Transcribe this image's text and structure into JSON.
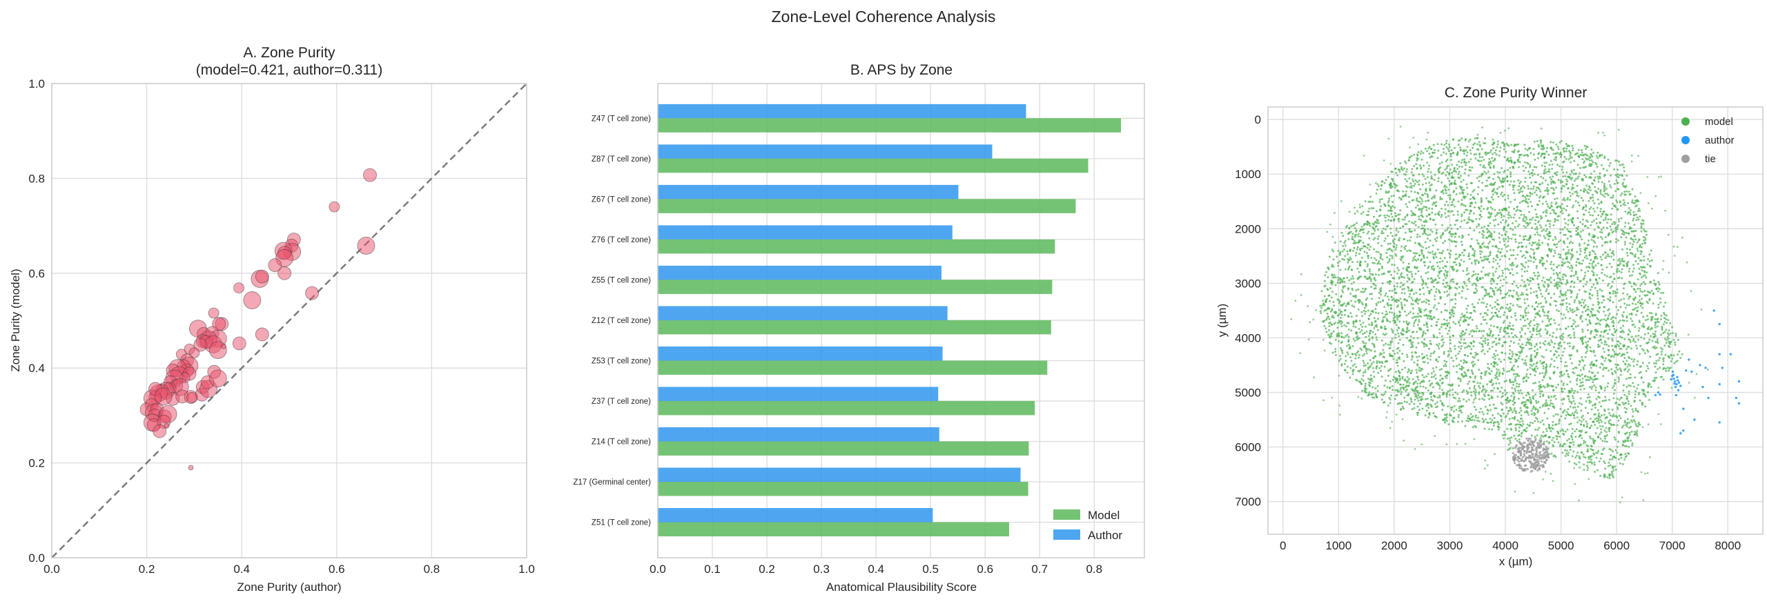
{
  "figure_title": "Zone-Level Coherence Analysis",
  "chart_data": [
    {
      "type": "scatter",
      "title_line1": "A. Zone Purity",
      "title_line2": "(model=0.421, author=0.311)",
      "xlabel": "Zone Purity (author)",
      "ylabel": "Zone Purity (model)",
      "xlim": [
        0,
        1
      ],
      "ylim": [
        0,
        1
      ],
      "xticks": [
        "0.0",
        "0.2",
        "0.4",
        "0.6",
        "0.8",
        "1.0"
      ],
      "yticks": [
        "0.0",
        "0.2",
        "0.4",
        "0.6",
        "0.8",
        "1.0"
      ],
      "grid": true,
      "reference_line": "y = x (dashed)",
      "color": "#e94f6a",
      "points": [
        [
          0.67,
          0.807,
          2
        ],
        [
          0.595,
          0.74,
          1
        ],
        [
          0.662,
          0.658,
          3
        ],
        [
          0.548,
          0.558,
          2
        ],
        [
          0.51,
          0.671,
          2
        ],
        [
          0.505,
          0.658,
          2
        ],
        [
          0.506,
          0.645,
          3
        ],
        [
          0.488,
          0.647,
          3
        ],
        [
          0.49,
          0.643,
          2
        ],
        [
          0.49,
          0.632,
          3
        ],
        [
          0.49,
          0.6,
          2
        ],
        [
          0.47,
          0.617,
          2
        ],
        [
          0.438,
          0.588,
          3
        ],
        [
          0.443,
          0.593,
          2
        ],
        [
          0.394,
          0.569,
          1
        ],
        [
          0.422,
          0.543,
          3
        ],
        [
          0.443,
          0.471,
          2
        ],
        [
          0.395,
          0.452,
          2
        ],
        [
          0.341,
          0.516,
          1
        ],
        [
          0.358,
          0.493,
          2
        ],
        [
          0.352,
          0.493,
          2
        ],
        [
          0.308,
          0.483,
          3
        ],
        [
          0.32,
          0.472,
          2
        ],
        [
          0.338,
          0.474,
          2
        ],
        [
          0.35,
          0.462,
          3
        ],
        [
          0.33,
          0.46,
          3
        ],
        [
          0.318,
          0.457,
          2
        ],
        [
          0.325,
          0.455,
          2
        ],
        [
          0.34,
          0.45,
          3
        ],
        [
          0.313,
          0.449,
          2
        ],
        [
          0.35,
          0.438,
          3
        ],
        [
          0.362,
          0.446,
          0
        ],
        [
          0.29,
          0.44,
          1
        ],
        [
          0.3,
          0.432,
          1
        ],
        [
          0.273,
          0.429,
          1
        ],
        [
          0.285,
          0.416,
          2
        ],
        [
          0.29,
          0.405,
          3
        ],
        [
          0.278,
          0.404,
          2
        ],
        [
          0.285,
          0.395,
          2
        ],
        [
          0.265,
          0.4,
          3
        ],
        [
          0.255,
          0.395,
          2
        ],
        [
          0.268,
          0.385,
          3
        ],
        [
          0.29,
          0.388,
          2
        ],
        [
          0.28,
          0.38,
          1
        ],
        [
          0.258,
          0.378,
          3
        ],
        [
          0.25,
          0.37,
          2
        ],
        [
          0.262,
          0.362,
          2
        ],
        [
          0.27,
          0.36,
          3
        ],
        [
          0.248,
          0.356,
          2
        ],
        [
          0.24,
          0.352,
          3
        ],
        [
          0.232,
          0.352,
          2
        ],
        [
          0.225,
          0.347,
          3
        ],
        [
          0.218,
          0.338,
          2
        ],
        [
          0.212,
          0.336,
          3
        ],
        [
          0.218,
          0.356,
          2
        ],
        [
          0.255,
          0.335,
          2
        ],
        [
          0.275,
          0.34,
          2
        ],
        [
          0.293,
          0.339,
          2
        ],
        [
          0.316,
          0.344,
          2
        ],
        [
          0.318,
          0.36,
          2
        ],
        [
          0.33,
          0.356,
          3
        ],
        [
          0.328,
          0.37,
          2
        ],
        [
          0.342,
          0.392,
          2
        ],
        [
          0.35,
          0.378,
          3
        ],
        [
          0.235,
          0.34,
          3
        ],
        [
          0.21,
          0.322,
          2
        ],
        [
          0.2,
          0.313,
          2
        ],
        [
          0.215,
          0.306,
          3
        ],
        [
          0.222,
          0.312,
          2
        ],
        [
          0.217,
          0.3,
          2
        ],
        [
          0.238,
          0.298,
          2
        ],
        [
          0.245,
          0.303,
          3
        ],
        [
          0.212,
          0.285,
          3
        ],
        [
          0.215,
          0.28,
          2
        ],
        [
          0.236,
          0.287,
          2
        ],
        [
          0.242,
          0.278,
          0
        ],
        [
          0.227,
          0.267,
          2
        ],
        [
          0.293,
          0.19,
          0
        ],
        [
          0.295,
          0.338,
          1
        ]
      ]
    },
    {
      "type": "bar",
      "orientation": "horizontal",
      "title": "B. APS by Zone",
      "xlabel": "Anatomical Plausibility Score",
      "xlim": [
        0,
        0.892
      ],
      "xticks": [
        "0.0",
        "0.1",
        "0.2",
        "0.3",
        "0.4",
        "0.5",
        "0.6",
        "0.7",
        "0.8"
      ],
      "grid": true,
      "legend_position": "lower-right",
      "categories": [
        "Z47 (T cell zone)",
        "Z87 (T cell zone)",
        "Z67 (T cell zone)",
        "Z76 (T cell zone)",
        "Z55 (T cell zone)",
        "Z12 (T cell zone)",
        "Z53 (T cell zone)",
        "Z37 (T cell zone)",
        "Z14 (T cell zone)",
        "Z17 (Germinal center)",
        "Z51 (T cell zone)"
      ],
      "series": [
        {
          "name": "Model",
          "color": "#5cb85c",
          "values": [
            0.849,
            0.789,
            0.766,
            0.728,
            0.723,
            0.721,
            0.714,
            0.691,
            0.68,
            0.679,
            0.644
          ]
        },
        {
          "name": "Author",
          "color": "#2f97ee",
          "values": [
            0.675,
            0.613,
            0.551,
            0.54,
            0.52,
            0.531,
            0.522,
            0.514,
            0.516,
            0.665,
            0.504
          ]
        }
      ]
    },
    {
      "type": "scatter",
      "title": "C. Zone Purity Winner",
      "xlabel": "x (µm)",
      "ylabel": "y (µm)",
      "xlim": [
        -270,
        8630
      ],
      "ylim": [
        7600,
        -230
      ],
      "xticks": [
        "0",
        "1000",
        "2000",
        "3000",
        "4000",
        "5000",
        "6000",
        "7000",
        "8000"
      ],
      "yticks": [
        "0",
        "1000",
        "2000",
        "3000",
        "4000",
        "5000",
        "6000",
        "7000"
      ],
      "grid": true,
      "legend_position": "top-right",
      "legend": [
        {
          "name": "model",
          "color": "#4caf50"
        },
        {
          "name": "author",
          "color": "#2196f3"
        },
        {
          "name": "tie",
          "color": "#9e9e9e"
        }
      ],
      "model_region_outline": [
        [
          700,
          3000
        ],
        [
          900,
          2300
        ],
        [
          1300,
          1700
        ],
        [
          1700,
          1200
        ],
        [
          2200,
          700
        ],
        [
          2800,
          400
        ],
        [
          3500,
          300
        ],
        [
          4200,
          450
        ],
        [
          4800,
          350
        ],
        [
          5500,
          450
        ],
        [
          6100,
          800
        ],
        [
          6400,
          1500
        ],
        [
          6600,
          2300
        ],
        [
          6800,
          3000
        ],
        [
          7000,
          3700
        ],
        [
          7200,
          4300
        ],
        [
          6900,
          4700
        ],
        [
          6600,
          5100
        ],
        [
          6300,
          6000
        ],
        [
          6000,
          6600
        ],
        [
          5500,
          6500
        ],
        [
          5000,
          6200
        ],
        [
          4100,
          6200
        ],
        [
          3900,
          5700
        ],
        [
          3000,
          5600
        ],
        [
          2000,
          5300
        ],
        [
          1400,
          5000
        ],
        [
          900,
          4300
        ],
        [
          650,
          3500
        ]
      ],
      "model_point_count": 6500,
      "model_outlier_count": 120,
      "tie_cluster": {
        "center": [
          4450,
          6150
        ],
        "radius": 330,
        "count": 260
      },
      "author_points": [
        [
          7000,
          4700
        ],
        [
          7030,
          4750
        ],
        [
          7050,
          4800
        ],
        [
          7080,
          4850
        ],
        [
          7020,
          4680
        ],
        [
          7100,
          4780
        ],
        [
          7060,
          4900
        ],
        [
          7120,
          4820
        ],
        [
          7010,
          4620
        ],
        [
          7150,
          4880
        ],
        [
          7090,
          4720
        ],
        [
          6980,
          4760
        ],
        [
          7040,
          4840
        ],
        [
          7110,
          4960
        ],
        [
          7070,
          5050
        ],
        [
          7750,
          3500
        ],
        [
          7850,
          3750
        ],
        [
          8050,
          4300
        ],
        [
          7850,
          4300
        ],
        [
          7600,
          4550
        ],
        [
          7500,
          4500
        ],
        [
          7300,
          4400
        ],
        [
          7900,
          4550
        ],
        [
          8200,
          4800
        ],
        [
          7550,
          4900
        ],
        [
          7850,
          4850
        ],
        [
          7650,
          5100
        ],
        [
          8150,
          5100
        ],
        [
          8200,
          5200
        ],
        [
          6700,
          5050
        ],
        [
          6750,
          5000
        ],
        [
          6780,
          5040
        ],
        [
          7200,
          5300
        ],
        [
          7400,
          5500
        ],
        [
          7200,
          5700
        ],
        [
          7150,
          5750
        ],
        [
          7850,
          5550
        ],
        [
          7250,
          4600
        ],
        [
          7350,
          4620
        ]
      ]
    }
  ]
}
